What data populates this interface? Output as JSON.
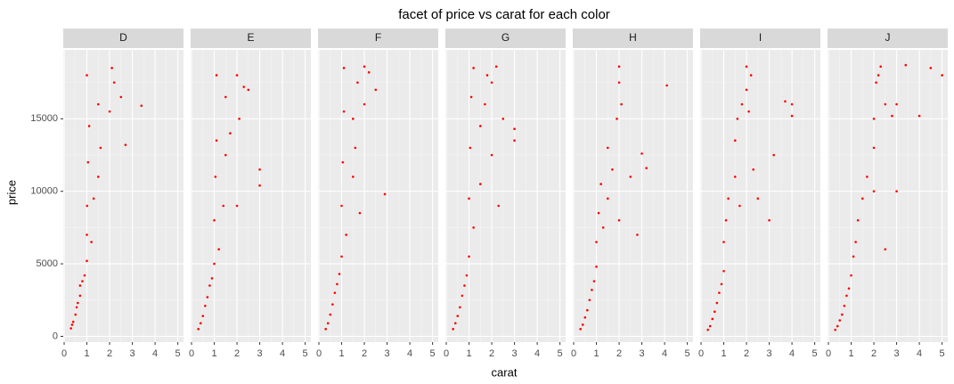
{
  "chart_data": {
    "type": "scatter",
    "title": "facet of price vs carat for each color",
    "xlabel": "carat",
    "ylabel": "price",
    "color": "#ff0000",
    "xlim": [
      -0.04,
      5.25
    ],
    "xticks": [
      0,
      1,
      2,
      3,
      4,
      5
    ],
    "xminor": [
      0.5,
      1.5,
      2.5,
      3.5,
      4.5
    ],
    "ylim": [
      -400,
      19750
    ],
    "yticks": [
      0,
      5000,
      10000,
      15000
    ],
    "yminor": [
      2500,
      7500,
      12500,
      17500
    ],
    "grid": true,
    "facets": [
      {
        "name": "D",
        "x": [
          0.3,
          0.35,
          0.4,
          0.5,
          0.55,
          0.6,
          0.7,
          0.7,
          0.8,
          0.9,
          1.0,
          1.0,
          1.01,
          1.05,
          1.1,
          1.0,
          1.2,
          1.3,
          1.5,
          1.5,
          1.6,
          2.0,
          2.1,
          2.2,
          2.5,
          2.7,
          3.4
        ],
        "y": [
          550,
          800,
          1000,
          1500,
          2000,
          2300,
          2800,
          3500,
          3800,
          4200,
          5200,
          7000,
          9000,
          12000,
          14500,
          18000,
          6500,
          9500,
          11000,
          16000,
          13000,
          15500,
          18500,
          17500,
          16500,
          13200,
          15900
        ]
      },
      {
        "name": "E",
        "x": [
          0.3,
          0.4,
          0.5,
          0.6,
          0.7,
          0.8,
          0.9,
          1.0,
          1.0,
          1.05,
          1.1,
          1.1,
          1.2,
          1.4,
          1.5,
          1.5,
          1.7,
          2.0,
          2.1,
          2.3,
          2.0,
          3.0,
          3.0,
          2.5
        ],
        "y": [
          500,
          900,
          1400,
          2100,
          2700,
          3500,
          4000,
          5000,
          8000,
          11000,
          13500,
          18000,
          6000,
          9000,
          12500,
          16500,
          14000,
          18000,
          15000,
          17200,
          9000,
          11500,
          10400,
          17000
        ]
      },
      {
        "name": "F",
        "x": [
          0.3,
          0.4,
          0.5,
          0.6,
          0.7,
          0.8,
          0.9,
          1.0,
          1.0,
          1.05,
          1.1,
          1.1,
          1.2,
          1.5,
          1.5,
          1.6,
          1.7,
          2.0,
          2.0,
          2.2,
          2.5,
          2.9,
          1.8
        ],
        "y": [
          500,
          900,
          1500,
          2200,
          3000,
          3600,
          4300,
          5500,
          9000,
          12000,
          15500,
          18500,
          7000,
          11000,
          15000,
          13000,
          17500,
          16000,
          18600,
          18200,
          17000,
          9800,
          8500
        ]
      },
      {
        "name": "G",
        "x": [
          0.3,
          0.4,
          0.5,
          0.6,
          0.7,
          0.8,
          0.9,
          1.0,
          1.0,
          1.05,
          1.1,
          1.2,
          1.2,
          1.5,
          1.5,
          1.7,
          1.8,
          2.0,
          2.0,
          2.2,
          2.5,
          2.3,
          3.0,
          3.0
        ],
        "y": [
          500,
          900,
          1400,
          2000,
          2800,
          3500,
          4200,
          5500,
          9500,
          13000,
          16500,
          18500,
          7500,
          10500,
          14500,
          16000,
          18000,
          12500,
          17500,
          18600,
          15000,
          9000,
          13500,
          14300
        ]
      },
      {
        "name": "H",
        "x": [
          0.3,
          0.4,
          0.5,
          0.6,
          0.7,
          0.8,
          0.9,
          1.0,
          1.0,
          1.1,
          1.2,
          1.3,
          1.5,
          1.5,
          1.7,
          1.9,
          2.0,
          2.0,
          2.1,
          2.0,
          2.5,
          2.8,
          3.0,
          3.2,
          4.1
        ],
        "y": [
          500,
          800,
          1300,
          1800,
          2500,
          3200,
          3800,
          4800,
          6500,
          8500,
          10500,
          7500,
          9500,
          13000,
          11500,
          15000,
          17500,
          18600,
          16000,
          8000,
          11000,
          7000,
          12600,
          11600,
          17300
        ]
      },
      {
        "name": "I",
        "x": [
          0.3,
          0.4,
          0.5,
          0.6,
          0.7,
          0.8,
          0.9,
          1.0,
          1.0,
          1.1,
          1.2,
          1.5,
          1.5,
          1.6,
          1.8,
          2.0,
          2.0,
          2.1,
          2.2,
          1.7,
          2.3,
          2.5,
          3.0,
          3.2,
          3.7,
          4.0,
          4.0
        ],
        "y": [
          450,
          700,
          1200,
          1700,
          2300,
          3000,
          3600,
          4500,
          6500,
          8000,
          9500,
          11000,
          13500,
          15000,
          16000,
          17000,
          18600,
          15500,
          18000,
          9000,
          11500,
          9500,
          8000,
          12500,
          16200,
          15200,
          16000
        ]
      },
      {
        "name": "J",
        "x": [
          0.3,
          0.4,
          0.5,
          0.6,
          0.7,
          0.8,
          0.9,
          1.0,
          1.1,
          1.2,
          1.3,
          1.5,
          1.7,
          2.0,
          2.0,
          2.1,
          2.2,
          2.3,
          2.5,
          2.8,
          2.0,
          2.5,
          3.0,
          3.0,
          3.4,
          4.0,
          4.5,
          5.0
        ],
        "y": [
          450,
          700,
          1100,
          1500,
          2100,
          2800,
          3300,
          4200,
          5500,
          6500,
          8000,
          9500,
          11000,
          13000,
          15000,
          17500,
          18000,
          18600,
          16000,
          15200,
          10000,
          6000,
          10000,
          16000,
          18700,
          15200,
          18500,
          18000
        ]
      }
    ]
  }
}
